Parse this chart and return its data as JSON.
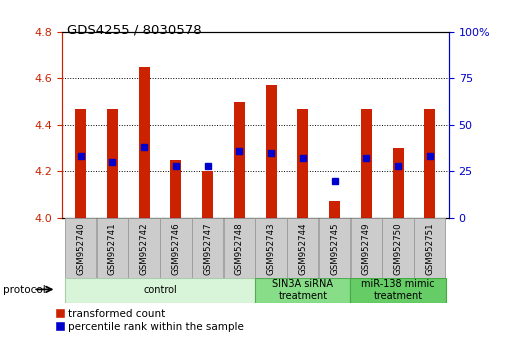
{
  "title": "GDS4255 / 8030578",
  "samples": [
    "GSM952740",
    "GSM952741",
    "GSM952742",
    "GSM952746",
    "GSM952747",
    "GSM952748",
    "GSM952743",
    "GSM952744",
    "GSM952745",
    "GSM952749",
    "GSM952750",
    "GSM952751"
  ],
  "red_values": [
    4.47,
    4.47,
    4.65,
    4.25,
    4.2,
    4.5,
    4.57,
    4.47,
    4.07,
    4.47,
    4.3,
    4.47
  ],
  "blue_pct": [
    33,
    30,
    38,
    28,
    28,
    36,
    35,
    32,
    20,
    32,
    28,
    33
  ],
  "ylim": [
    4.0,
    4.8
  ],
  "y_ticks": [
    4.0,
    4.2,
    4.4,
    4.6,
    4.8
  ],
  "right_ticks": [
    0,
    25,
    50,
    75,
    100
  ],
  "bar_color": "#cc2200",
  "dot_color": "#0000cc",
  "left_axis_color": "#cc2200",
  "right_axis_color": "#0000cc",
  "groups": [
    {
      "label": "control",
      "start": 0,
      "end": 6,
      "color": "#d9f5d9",
      "edge_color": "#aaccaa"
    },
    {
      "label": "SIN3A siRNA\ntreatment",
      "start": 6,
      "end": 9,
      "color": "#88dd88",
      "edge_color": "#55aa55"
    },
    {
      "label": "miR-138 mimic\ntreatment",
      "start": 9,
      "end": 12,
      "color": "#66cc66",
      "edge_color": "#44aa44"
    }
  ],
  "bar_width": 0.35
}
